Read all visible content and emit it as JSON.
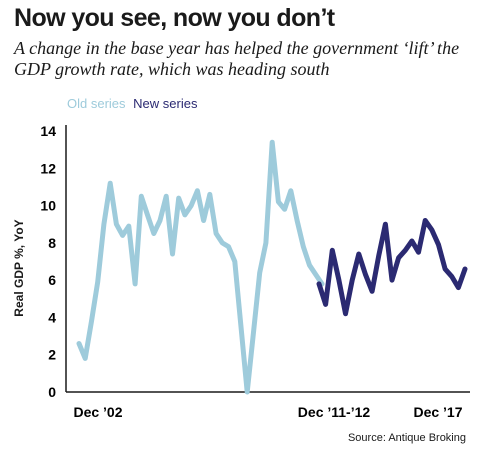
{
  "chart_data": {
    "type": "line",
    "title": "Now you see, now you don’t",
    "subtitle": "A change in the base year has helped the government ‘lift’ the GDP growth rate, which was heading south",
    "ylabel": "Real GDP %, YoY",
    "xlabel": "",
    "ylim": [
      0,
      14
    ],
    "yticks": [
      0,
      2,
      4,
      6,
      8,
      10,
      12,
      14
    ],
    "x_tick_labels": [
      "Dec ’02",
      "Dec ’11-’12",
      "Dec ’17"
    ],
    "grid": false,
    "legend_position": "top-left",
    "colors": {
      "old": "#9ecbdb",
      "new": "#2b2a72"
    },
    "series": [
      {
        "name": "Old series",
        "values": [
          2.6,
          1.8,
          3.8,
          5.9,
          9.0,
          11.2,
          9.0,
          8.4,
          8.9,
          5.8,
          10.5,
          9.5,
          8.5,
          9.2,
          10.5,
          7.4,
          10.4,
          9.5,
          10.0,
          10.8,
          9.2,
          10.6,
          8.5,
          8.0,
          7.8,
          7.0,
          3.5,
          0.0,
          3.2,
          6.4,
          8.0,
          13.4,
          10.2,
          9.8,
          10.8,
          9.2,
          7.8,
          6.8,
          6.3,
          5.8
        ]
      },
      {
        "name": "New series",
        "values": [
          5.8,
          4.7,
          7.6,
          6.0,
          4.2,
          6.0,
          7.4,
          6.3,
          5.4,
          7.3,
          9.0,
          6.0,
          7.2,
          7.6,
          8.1,
          7.5,
          9.2,
          8.7,
          7.9,
          6.6,
          6.2,
          5.6,
          6.6
        ]
      }
    ],
    "source": "Source: Antique Broking"
  }
}
